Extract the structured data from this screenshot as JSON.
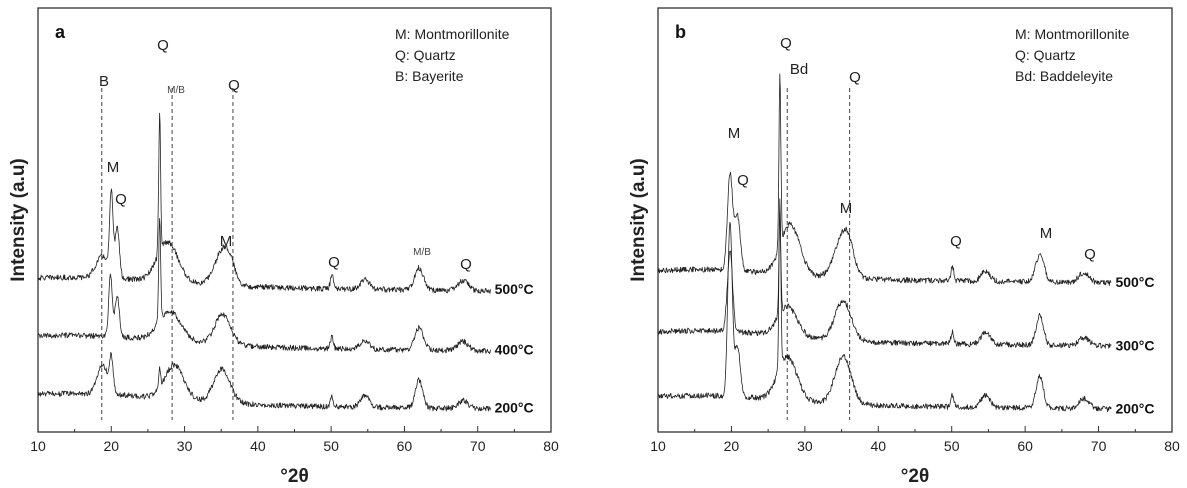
{
  "chart_data": [
    {
      "type": "line",
      "panel_label": "a",
      "xlabel": "°2θ",
      "ylabel": "Intensity (a.u)",
      "xlim": [
        10,
        80
      ],
      "x_ticks": [
        "10",
        "20",
        "30",
        "40",
        "50",
        "60",
        "70",
        "80"
      ],
      "legend": [
        "M: Montmorillonite",
        "Q: Quartz",
        "B: Bayerite"
      ],
      "series": [
        {
          "name": "500°C"
        },
        {
          "name": "400°C"
        },
        {
          "name": "200°C"
        }
      ],
      "reference_lines": [
        18.7,
        28.3,
        36.6
      ],
      "peak_labels": [
        {
          "text": "B",
          "x": 18.7
        },
        {
          "text": "M",
          "x": 20.0
        },
        {
          "text": "Q",
          "x": 20.9
        },
        {
          "text": "Q",
          "x": 26.6
        },
        {
          "text": "M/B",
          "x": 28.3
        },
        {
          "text": "Q",
          "x": 36.6
        },
        {
          "text": "M",
          "x": 35.2
        },
        {
          "text": "Q",
          "x": 50.1
        },
        {
          "text": "M/B",
          "x": 62.0
        },
        {
          "text": "Q",
          "x": 68.1
        }
      ]
    },
    {
      "type": "line",
      "panel_label": "b",
      "xlabel": "°2θ",
      "ylabel": "Intensity (a.u)",
      "xlim": [
        10,
        80
      ],
      "x_ticks": [
        "10",
        "20",
        "30",
        "40",
        "50",
        "60",
        "70",
        "80"
      ],
      "legend": [
        "M: Montmorillonite",
        "Q: Quartz",
        "Bd: Baddeleyite"
      ],
      "series": [
        {
          "name": "500°C"
        },
        {
          "name": "300°C"
        },
        {
          "name": "200°C"
        }
      ],
      "reference_lines": [
        27.6,
        36.1
      ],
      "peak_labels": [
        {
          "text": "M",
          "x": 19.8
        },
        {
          "text": "Q",
          "x": 20.9
        },
        {
          "text": "Q",
          "x": 26.6
        },
        {
          "text": "Bd",
          "x": 28.1
        },
        {
          "text": "Q",
          "x": 36.1
        },
        {
          "text": "M",
          "x": 35.0
        },
        {
          "text": "Q",
          "x": 50.1
        },
        {
          "text": "M",
          "x": 62.0
        },
        {
          "text": "Q",
          "x": 68.1
        }
      ]
    }
  ]
}
